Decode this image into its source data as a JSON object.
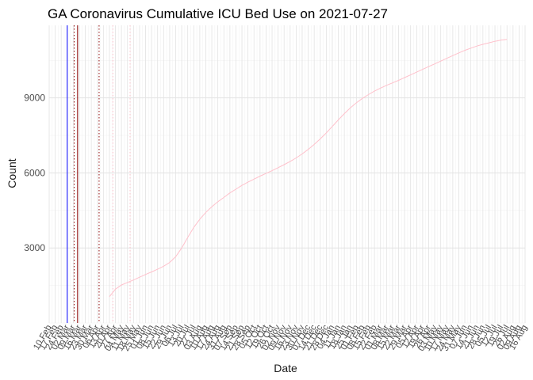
{
  "chart_data": {
    "type": "line",
    "title": "GA Coronavirus Cumulative ICU Bed Use on 2021-07-27",
    "xlabel": "Date",
    "ylabel": "Count",
    "x_range": [
      "2020-02-10",
      "2021-08-16"
    ],
    "ylim": [
      0,
      11900
    ],
    "yticks": [
      3000,
      6000,
      9000
    ],
    "xticks": [
      "10 Feb",
      "17 Feb",
      "24 Feb",
      "02 Mar",
      "09 Mar",
      "16 Mar",
      "23 Mar",
      "30 Mar",
      "06 Apr",
      "13 Apr",
      "20 Apr",
      "27 Apr",
      "04 May",
      "11 May",
      "18 May",
      "25 May",
      "01 Jun",
      "08 Jun",
      "15 Jun",
      "22 Jun",
      "29 Jun",
      "06 Jul",
      "13 Jul",
      "20 Jul",
      "27 Jul",
      "03 Aug",
      "10 Aug",
      "17 Aug",
      "24 Aug",
      "31 Aug",
      "07 Sep",
      "14 Sep",
      "21 Sep",
      "28 Sep",
      "05 Oct",
      "12 Oct",
      "19 Oct",
      "26 Oct",
      "02 Nov",
      "09 Nov",
      "16 Nov",
      "23 Nov",
      "30 Nov",
      "07 Dec",
      "14 Dec",
      "21 Dec",
      "28 Dec",
      "04 Jan",
      "11 Jan",
      "18 Jan",
      "25 Jan",
      "01 Feb",
      "08 Feb",
      "15 Feb",
      "22 Feb",
      "01 Mar",
      "08 Mar",
      "15 Mar",
      "22 Mar",
      "29 Mar",
      "05 Apr",
      "12 Apr",
      "19 Apr",
      "26 Apr",
      "03 May",
      "10 May",
      "17 May",
      "24 May",
      "31 May",
      "07 Jun",
      "14 Jun",
      "21 Jun",
      "28 Jun",
      "05 Jul",
      "12 Jul",
      "19 Jul",
      "26 Jul",
      "02 Aug",
      "09 Aug",
      "16 Aug"
    ],
    "grid": true,
    "series": [
      {
        "color": "#ffc0cb",
        "points": [
          [
            "2020-04-20",
            1050
          ],
          [
            "2020-04-27",
            1350
          ],
          [
            "2020-05-04",
            1520
          ],
          [
            "2020-05-11",
            1620
          ],
          [
            "2020-05-18",
            1720
          ],
          [
            "2020-05-25",
            1830
          ],
          [
            "2020-06-01",
            1940
          ],
          [
            "2020-06-08",
            2040
          ],
          [
            "2020-06-15",
            2150
          ],
          [
            "2020-06-22",
            2270
          ],
          [
            "2020-06-29",
            2420
          ],
          [
            "2020-07-06",
            2650
          ],
          [
            "2020-07-13",
            3000
          ],
          [
            "2020-07-20",
            3420
          ],
          [
            "2020-07-27",
            3820
          ],
          [
            "2020-08-03",
            4150
          ],
          [
            "2020-08-10",
            4420
          ],
          [
            "2020-08-17",
            4650
          ],
          [
            "2020-08-24",
            4850
          ],
          [
            "2020-08-31",
            5020
          ],
          [
            "2020-09-07",
            5200
          ],
          [
            "2020-09-14",
            5350
          ],
          [
            "2020-09-21",
            5500
          ],
          [
            "2020-09-28",
            5630
          ],
          [
            "2020-10-05",
            5750
          ],
          [
            "2020-10-12",
            5870
          ],
          [
            "2020-10-19",
            5980
          ],
          [
            "2020-10-26",
            6090
          ],
          [
            "2020-11-02",
            6210
          ],
          [
            "2020-11-09",
            6330
          ],
          [
            "2020-11-16",
            6460
          ],
          [
            "2020-11-23",
            6600
          ],
          [
            "2020-11-30",
            6760
          ],
          [
            "2020-12-07",
            6940
          ],
          [
            "2020-12-14",
            7140
          ],
          [
            "2020-12-21",
            7360
          ],
          [
            "2020-12-28",
            7600
          ],
          [
            "2021-01-04",
            7860
          ],
          [
            "2021-01-11",
            8120
          ],
          [
            "2021-01-18",
            8370
          ],
          [
            "2021-01-25",
            8600
          ],
          [
            "2021-02-01",
            8800
          ],
          [
            "2021-02-08",
            8980
          ],
          [
            "2021-02-15",
            9130
          ],
          [
            "2021-02-22",
            9270
          ],
          [
            "2021-03-01",
            9390
          ],
          [
            "2021-03-08",
            9500
          ],
          [
            "2021-03-15",
            9600
          ],
          [
            "2021-03-22",
            9700
          ],
          [
            "2021-03-29",
            9810
          ],
          [
            "2021-04-05",
            9920
          ],
          [
            "2021-04-12",
            10030
          ],
          [
            "2021-04-19",
            10140
          ],
          [
            "2021-04-26",
            10250
          ],
          [
            "2021-05-03",
            10360
          ],
          [
            "2021-05-10",
            10470
          ],
          [
            "2021-05-17",
            10580
          ],
          [
            "2021-05-24",
            10690
          ],
          [
            "2021-05-31",
            10800
          ],
          [
            "2021-06-07",
            10900
          ],
          [
            "2021-06-14",
            10990
          ],
          [
            "2021-06-21",
            11070
          ],
          [
            "2021-06-28",
            11140
          ],
          [
            "2021-07-05",
            11200
          ],
          [
            "2021-07-12",
            11260
          ],
          [
            "2021-07-19",
            11310
          ],
          [
            "2021-07-26",
            11340
          ]
        ]
      }
    ],
    "vlines": [
      {
        "date": "2020-03-02",
        "color": "#0000ff",
        "style": "solid"
      },
      {
        "date": "2020-03-14",
        "color": "#8b0000",
        "style": "solid"
      },
      {
        "date": "2020-03-10",
        "color": "#8b0000",
        "style": "dotted"
      },
      {
        "date": "2020-04-08",
        "color": "#8b0000",
        "style": "dotted"
      },
      {
        "date": "2020-04-24",
        "color": "#ffc0cb",
        "style": "dotted"
      },
      {
        "date": "2020-05-14",
        "color": "#ffc0cb",
        "style": "dotted"
      }
    ]
  }
}
